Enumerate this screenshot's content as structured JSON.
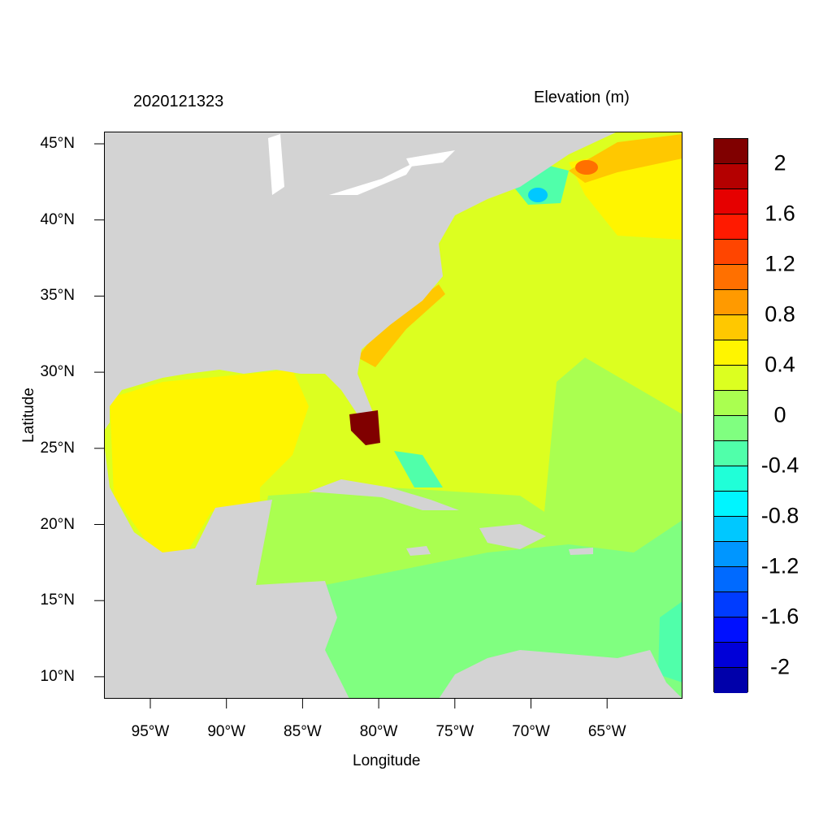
{
  "title_left": "2020121323",
  "title_right": "Elevation (m)",
  "xlabel": "Longitude",
  "ylabel": "Latitude",
  "lat_ticks": [
    "45°N",
    "40°N",
    "35°N",
    "30°N",
    "25°N",
    "20°N",
    "15°N",
    "10°N"
  ],
  "lon_ticks": [
    "95°W",
    "90°W",
    "85°W",
    "80°W",
    "75°W",
    "70°W",
    "65°W"
  ],
  "colorbar": {
    "labels": [
      "2",
      "1.6",
      "1.2",
      "0.8",
      "0.4",
      "0",
      "-0.4",
      "-0.8",
      "-1.2",
      "-1.6",
      "-2"
    ],
    "colors": [
      "#800000",
      "#b40000",
      "#e60000",
      "#ff1a00",
      "#ff4500",
      "#ff7000",
      "#ff9a00",
      "#ffc800",
      "#fff500",
      "#dcff20",
      "#aaff50",
      "#80ff80",
      "#50ffaa",
      "#20ffd8",
      "#00f5ff",
      "#00c8ff",
      "#0096ff",
      "#006aff",
      "#003cff",
      "#0010ff",
      "#0000d8",
      "#0000aa"
    ]
  },
  "colors": {
    "land": "#d3d3d3",
    "lakes": "#ffffff"
  }
}
